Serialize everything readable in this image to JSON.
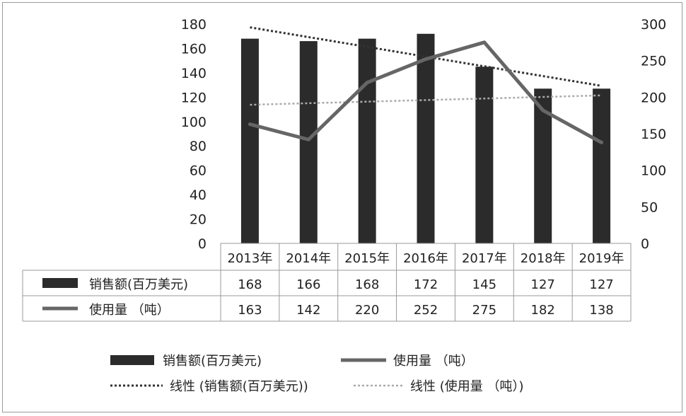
{
  "chart_data": {
    "type": "bar",
    "categories": [
      "2013年",
      "2014年",
      "2015年",
      "2016年",
      "2017年",
      "2018年",
      "2019年"
    ],
    "series": [
      {
        "name": "销售额(百万美元)",
        "type": "bar",
        "axis": "left",
        "values": [
          168,
          166,
          168,
          172,
          145,
          127,
          127
        ],
        "color": "#2b2b2b"
      },
      {
        "name": "使用量 （吨）",
        "type": "line",
        "axis": "right",
        "values": [
          163,
          142,
          220,
          252,
          275,
          182,
          138
        ],
        "color": "#666666"
      }
    ],
    "trendlines": [
      {
        "name": "线性 (销售额(百万美元))",
        "of": "销售额(百万美元)",
        "style": "dotted",
        "color": "#333333"
      },
      {
        "name": "线性 (使用量 （吨）)",
        "of": "使用量 （吨）",
        "style": "dotted",
        "color": "#aaaaaa"
      }
    ],
    "y_left": {
      "min": 0,
      "max": 180,
      "step": 20
    },
    "y_right": {
      "min": 0,
      "max": 300,
      "step": 50
    },
    "data_table": {
      "rows": [
        "销售额(百万美元)",
        "使用量 （吨）"
      ]
    },
    "legend": {
      "position": "bottom",
      "entries": [
        "销售额(百万美元)",
        "使用量 （吨）",
        "线性 (销售额(百万美元))",
        "线性 (使用量 （吨）)"
      ]
    },
    "grid": false
  }
}
